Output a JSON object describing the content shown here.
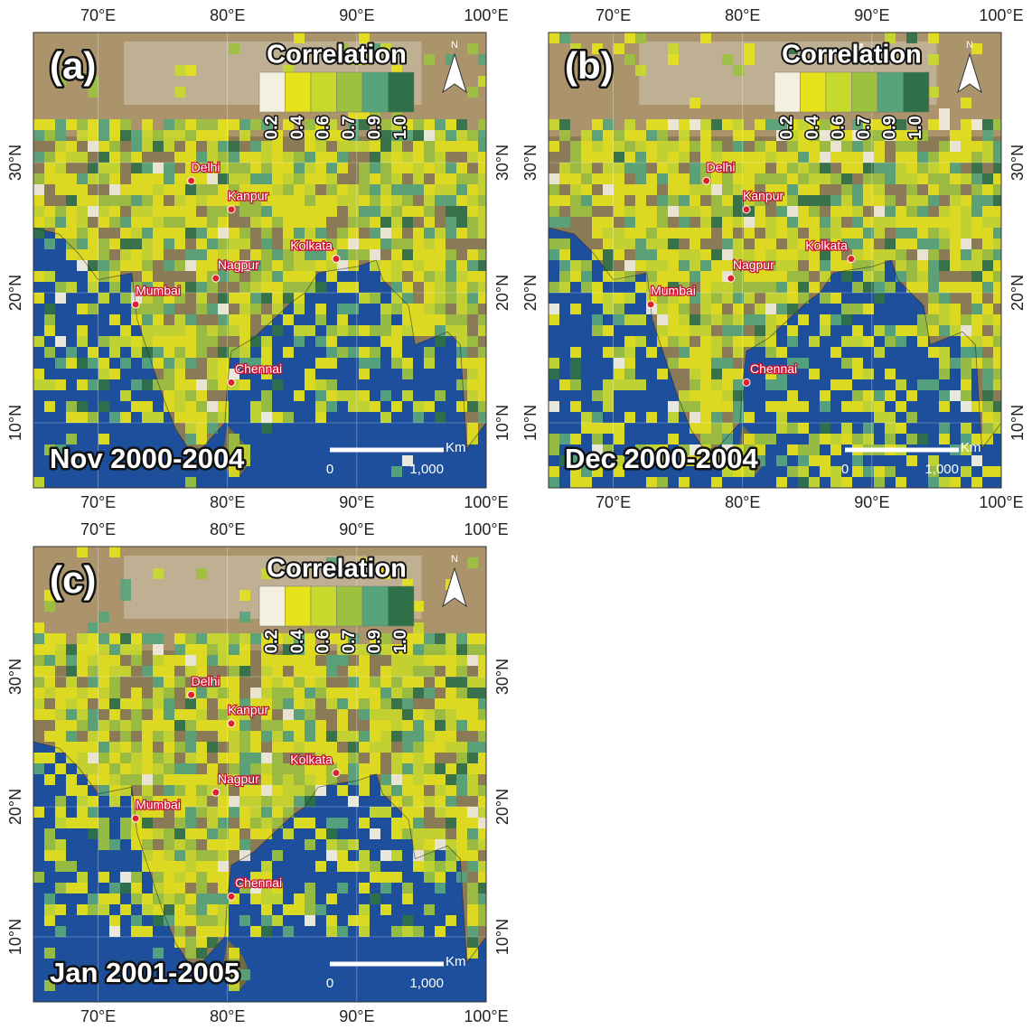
{
  "panels": [
    {
      "label": "(a)",
      "period": "Nov 2000-2004"
    },
    {
      "label": "(b)",
      "period": "Dec 2000-2004"
    },
    {
      "label": "(c)",
      "period": "Jan 2001-2005"
    }
  ],
  "x_ticks": [
    "70°E",
    "80°E",
    "90°E",
    "100°E"
  ],
  "y_ticks": [
    "10°N",
    "20°N",
    "30°N"
  ],
  "legend": {
    "title": "Correlation",
    "ticks": [
      "0.2",
      "0.4",
      "0.6",
      "0.7",
      "0.9",
      "1.0"
    ],
    "colors": [
      "#f3f0e0",
      "#e6e21c",
      "#c8d92e",
      "#9cc13f",
      "#57a47c",
      "#2f7049"
    ]
  },
  "cities": [
    "Delhi",
    "Kanpur",
    "Nagpur",
    "Kolkata",
    "Mumbai",
    "Chennai"
  ],
  "north": "N",
  "scale_bar": {
    "unit": "Km",
    "start": "0",
    "end": "1,000"
  }
}
